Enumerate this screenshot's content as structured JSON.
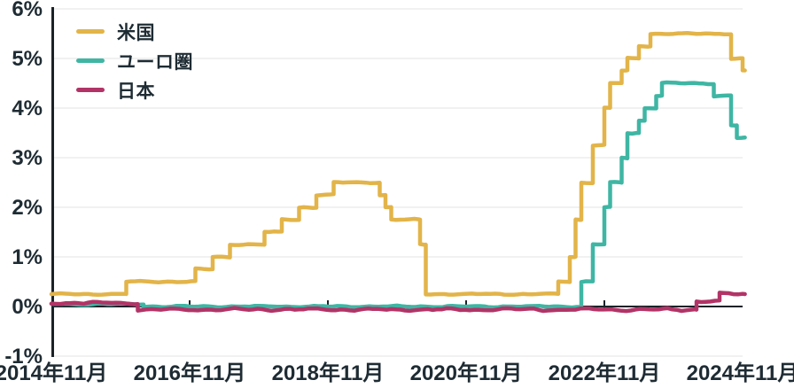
{
  "chart_data": {
    "type": "line",
    "subtype": "step",
    "title": "",
    "xlabel": "",
    "ylabel": "",
    "x_unit": "month",
    "x_range": [
      "2014-11",
      "2024-11"
    ],
    "ylim": [
      -1,
      6
    ],
    "grid": true,
    "legend_position": "top-left-inside",
    "y_axis_labels": [
      {
        "label": "6%",
        "value": 6
      },
      {
        "label": "5%",
        "value": 5
      },
      {
        "label": "4%",
        "value": 4
      },
      {
        "label": "3%",
        "value": 3
      },
      {
        "label": "2%",
        "value": 2
      },
      {
        "label": "1%",
        "value": 1
      },
      {
        "label": "0%",
        "value": 0
      },
      {
        "label": "-1%",
        "value": -1
      }
    ],
    "x_ticks": [
      {
        "label": "2014年11月",
        "month": 0
      },
      {
        "label": "2016年11月",
        "month": 24
      },
      {
        "label": "2018年11月",
        "month": 48
      },
      {
        "label": "2020年11月",
        "month": 72
      },
      {
        "label": "2022年11月",
        "month": 96
      },
      {
        "label": "2024年11月",
        "month": 120
      }
    ],
    "tick_mark_months": [
      24,
      48,
      72,
      96
    ],
    "colors": {
      "plot_background": "#FFFFFF",
      "grid": "#F1F1F1",
      "axis": "#1A2228",
      "text": "#1E2B33"
    },
    "series": [
      {
        "name": "米国",
        "color": "#E2B449",
        "wobble": 0.8,
        "points": [
          [
            "2014-11",
            0.25
          ],
          [
            "2015-12",
            0.5
          ],
          [
            "2016-12",
            0.75
          ],
          [
            "2017-03",
            1.0
          ],
          [
            "2017-06",
            1.25
          ],
          [
            "2017-12",
            1.5
          ],
          [
            "2018-03",
            1.75
          ],
          [
            "2018-06",
            2.0
          ],
          [
            "2018-09",
            2.25
          ],
          [
            "2018-12",
            2.5
          ],
          [
            "2019-08",
            2.25
          ],
          [
            "2019-09",
            2.0
          ],
          [
            "2019-10",
            1.75
          ],
          [
            "2020-03",
            1.25
          ],
          [
            "2020-04",
            0.25
          ],
          [
            "2022-03",
            0.5
          ],
          [
            "2022-05",
            1.0
          ],
          [
            "2022-06",
            1.75
          ],
          [
            "2022-07",
            2.5
          ],
          [
            "2022-09",
            3.25
          ],
          [
            "2022-11",
            4.0
          ],
          [
            "2022-12",
            4.5
          ],
          [
            "2023-02",
            4.75
          ],
          [
            "2023-03",
            5.0
          ],
          [
            "2023-05",
            5.25
          ],
          [
            "2023-07",
            5.5
          ],
          [
            "2024-09",
            5.0
          ],
          [
            "2024-11",
            4.75
          ]
        ]
      },
      {
        "name": "ユーロ圏",
        "color": "#3FB6A4",
        "wobble": 0.9,
        "points": [
          [
            "2014-11",
            0.05
          ],
          [
            "2016-03",
            0.0
          ],
          [
            "2022-07",
            0.5
          ],
          [
            "2022-09",
            1.25
          ],
          [
            "2022-11",
            2.0
          ],
          [
            "2022-12",
            2.5
          ],
          [
            "2023-02",
            3.0
          ],
          [
            "2023-03",
            3.5
          ],
          [
            "2023-05",
            3.75
          ],
          [
            "2023-06",
            4.0
          ],
          [
            "2023-08",
            4.25
          ],
          [
            "2023-09",
            4.5
          ],
          [
            "2024-06",
            4.25
          ],
          [
            "2024-09",
            3.65
          ],
          [
            "2024-10",
            3.4
          ]
        ]
      },
      {
        "name": "日本",
        "color": "#B23467",
        "wobble": 1.5,
        "points": [
          [
            "2014-11",
            0.07
          ],
          [
            "2016-02",
            -0.06
          ],
          [
            "2024-03",
            0.1
          ],
          [
            "2024-07",
            0.25
          ]
        ]
      }
    ]
  }
}
